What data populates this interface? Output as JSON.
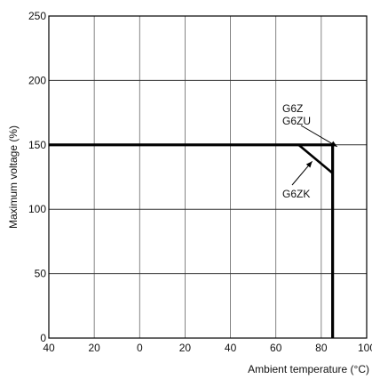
{
  "chart_data": {
    "type": "line",
    "title": "",
    "xlabel": "Ambient temperature (°C)",
    "ylabel": "Maximum voltage (%)",
    "xlim": [
      -40,
      100
    ],
    "ylim": [
      0,
      250
    ],
    "x_ticks": [
      -40,
      -20,
      0,
      20,
      40,
      60,
      80,
      100
    ],
    "x_tick_labels": [
      "40",
      "20",
      "0",
      "20",
      "40",
      "60",
      "80",
      "100"
    ],
    "y_ticks": [
      0,
      50,
      100,
      150,
      200,
      250
    ],
    "y_tick_labels": [
      "0",
      "50",
      "100",
      "150",
      "200",
      "250"
    ],
    "grid": true,
    "series": [
      {
        "name": "G6Z G6ZU",
        "x": [
          -40,
          85,
          85
        ],
        "y": [
          150,
          150,
          0
        ]
      },
      {
        "name": "G6ZK",
        "x": [
          70,
          85
        ],
        "y": [
          150,
          128
        ]
      }
    ],
    "annotations": [
      {
        "lines": [
          "G6Z",
          "G6ZU"
        ],
        "x": 87,
        "y": 150
      },
      {
        "lines": [
          "G6ZK"
        ],
        "x": 76,
        "y": 140
      }
    ]
  }
}
